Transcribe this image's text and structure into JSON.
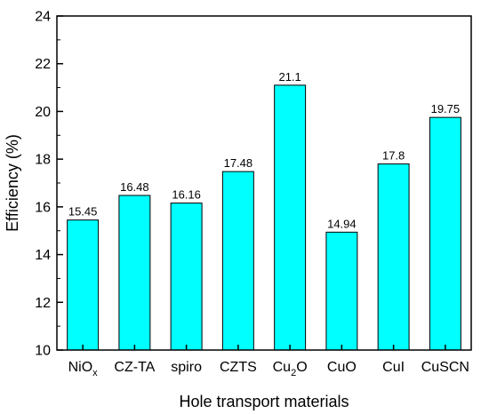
{
  "chart_data": {
    "type": "bar",
    "categories": [
      "NiOx",
      "CZ-TA",
      "spiro",
      "CZTS",
      "Cu2O",
      "CuO",
      "CuI",
      "CuSCN"
    ],
    "category_labels": [
      {
        "base": "NiO",
        "sub": "x",
        "tail": ""
      },
      {
        "base": "CZ-TA",
        "sub": "",
        "tail": ""
      },
      {
        "base": "spiro",
        "sub": "",
        "tail": ""
      },
      {
        "base": "CZTS",
        "sub": "",
        "tail": ""
      },
      {
        "base": "Cu",
        "sub": "2",
        "tail": "O"
      },
      {
        "base": "CuO",
        "sub": "",
        "tail": ""
      },
      {
        "base": "CuI",
        "sub": "",
        "tail": ""
      },
      {
        "base": "CuSCN",
        "sub": "",
        "tail": ""
      }
    ],
    "values": [
      15.45,
      16.48,
      16.16,
      17.48,
      21.1,
      14.94,
      17.8,
      19.75
    ],
    "value_labels": [
      "15.45",
      "16.48",
      "16.16",
      "17.48",
      "21.1",
      "14.94",
      "17.8",
      "19.75"
    ],
    "xlabel": "Hole transport materials",
    "ylabel": "Efficiency (%)",
    "ylim": [
      10,
      24
    ],
    "yticks": [
      10,
      12,
      14,
      16,
      18,
      20,
      22,
      24
    ],
    "grid": false,
    "bar_color": "#00ffff",
    "bar_edge_color": "#000000"
  }
}
